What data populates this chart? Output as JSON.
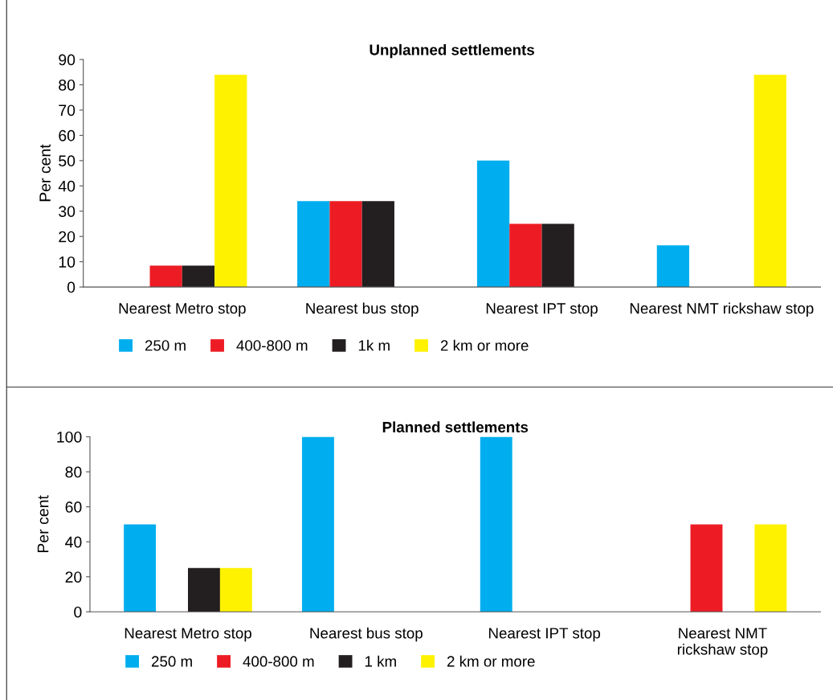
{
  "chart_data": [
    {
      "type": "bar",
      "title": "Unplanned settlements",
      "ylabel": "Per cent",
      "categories": [
        "Nearest Metro stop",
        "Nearest bus stop",
        "Nearest IPT stop",
        "Nearest NMT rickshaw stop"
      ],
      "series": [
        {
          "name": "250 m",
          "color": "#00aeef",
          "values": [
            0,
            34,
            50,
            16.5
          ]
        },
        {
          "name": "400-800 m",
          "color": "#ed1c24",
          "values": [
            8.5,
            34,
            25,
            0
          ]
        },
        {
          "name": "1k m",
          "color": "#231f20",
          "values": [
            8.5,
            34,
            25,
            0
          ]
        },
        {
          "name": "2 km or more",
          "color": "#fff200",
          "values": [
            84,
            0,
            0,
            84
          ]
        }
      ],
      "ylim": [
        0,
        90
      ],
      "yticks": [
        0,
        10,
        20,
        30,
        40,
        50,
        60,
        70,
        80,
        90
      ],
      "grid": false,
      "legend": "bottom"
    },
    {
      "type": "bar",
      "title": "Planned settlements",
      "ylabel": "Per cent",
      "categories": [
        "Nearest Metro stop",
        "Nearest bus stop",
        "Nearest IPT stop",
        "Nearest NMT\nrickshaw stop"
      ],
      "series": [
        {
          "name": "250 m",
          "color": "#00aeef",
          "values": [
            50,
            100,
            100,
            0
          ]
        },
        {
          "name": "400-800 m",
          "color": "#ed1c24",
          "values": [
            0,
            0,
            0,
            50
          ]
        },
        {
          "name": "1 km",
          "color": "#231f20",
          "values": [
            25,
            0,
            0,
            0
          ]
        },
        {
          "name": "2 km or more",
          "color": "#fff200",
          "values": [
            25,
            0,
            0,
            50
          ]
        }
      ],
      "ylim": [
        0,
        100
      ],
      "yticks": [
        0,
        20,
        40,
        60,
        80,
        100
      ],
      "grid": false,
      "legend": "bottom"
    }
  ]
}
